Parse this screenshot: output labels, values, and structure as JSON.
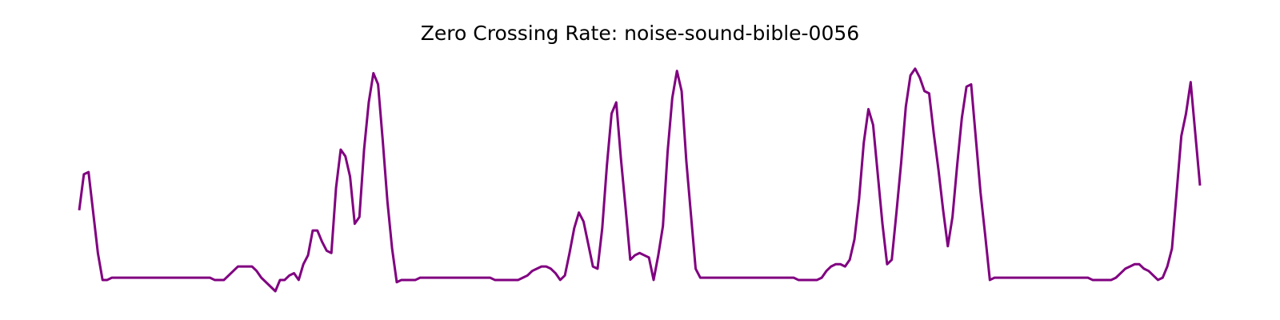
{
  "chart_data": {
    "type": "line",
    "title": "Zero Crossing Rate: noise-sound-bible-0056",
    "series": [
      {
        "color": "#800080",
        "values": [
          0.36,
          0.52,
          0.53,
          0.35,
          0.17,
          0.05,
          0.05,
          0.06,
          0.06,
          0.06,
          0.06,
          0.06,
          0.06,
          0.06,
          0.06,
          0.06,
          0.06,
          0.06,
          0.06,
          0.06,
          0.06,
          0.06,
          0.06,
          0.06,
          0.06,
          0.06,
          0.06,
          0.06,
          0.06,
          0.05,
          0.05,
          0.05,
          0.07,
          0.09,
          0.11,
          0.11,
          0.11,
          0.11,
          0.09,
          0.06,
          0.04,
          0.02,
          0.0,
          0.05,
          0.05,
          0.07,
          0.08,
          0.05,
          0.12,
          0.16,
          0.27,
          0.27,
          0.22,
          0.18,
          0.17,
          0.46,
          0.63,
          0.6,
          0.51,
          0.3,
          0.33,
          0.63,
          0.84,
          0.97,
          0.92,
          0.67,
          0.4,
          0.19,
          0.04,
          0.05,
          0.05,
          0.05,
          0.05,
          0.06,
          0.06,
          0.06,
          0.06,
          0.06,
          0.06,
          0.06,
          0.06,
          0.06,
          0.06,
          0.06,
          0.06,
          0.06,
          0.06,
          0.06,
          0.06,
          0.05,
          0.05,
          0.05,
          0.05,
          0.05,
          0.05,
          0.06,
          0.07,
          0.09,
          0.1,
          0.11,
          0.11,
          0.1,
          0.08,
          0.05,
          0.07,
          0.17,
          0.28,
          0.35,
          0.31,
          0.21,
          0.11,
          0.1,
          0.28,
          0.56,
          0.79,
          0.84,
          0.59,
          0.37,
          0.14,
          0.16,
          0.17,
          0.16,
          0.15,
          0.05,
          0.16,
          0.29,
          0.62,
          0.86,
          0.98,
          0.89,
          0.58,
          0.34,
          0.1,
          0.06,
          0.06,
          0.06,
          0.06,
          0.06,
          0.06,
          0.06,
          0.06,
          0.06,
          0.06,
          0.06,
          0.06,
          0.06,
          0.06,
          0.06,
          0.06,
          0.06,
          0.06,
          0.06,
          0.06,
          0.06,
          0.05,
          0.05,
          0.05,
          0.05,
          0.05,
          0.06,
          0.09,
          0.11,
          0.12,
          0.12,
          0.11,
          0.14,
          0.23,
          0.41,
          0.66,
          0.81,
          0.74,
          0.52,
          0.3,
          0.12,
          0.14,
          0.35,
          0.57,
          0.82,
          0.96,
          0.99,
          0.95,
          0.89,
          0.88,
          0.7,
          0.54,
          0.36,
          0.2,
          0.33,
          0.56,
          0.77,
          0.91,
          0.92,
          0.68,
          0.44,
          0.25,
          0.05,
          0.06,
          0.06,
          0.06,
          0.06,
          0.06,
          0.06,
          0.06,
          0.06,
          0.06,
          0.06,
          0.06,
          0.06,
          0.06,
          0.06,
          0.06,
          0.06,
          0.06,
          0.06,
          0.06,
          0.06,
          0.06,
          0.05,
          0.05,
          0.05,
          0.05,
          0.05,
          0.06,
          0.08,
          0.1,
          0.11,
          0.12,
          0.12,
          0.1,
          0.09,
          0.07,
          0.05,
          0.06,
          0.11,
          0.19,
          0.44,
          0.69,
          0.79,
          0.93,
          0.7,
          0.47
        ]
      }
    ],
    "ylim": [
      0,
      1
    ]
  }
}
